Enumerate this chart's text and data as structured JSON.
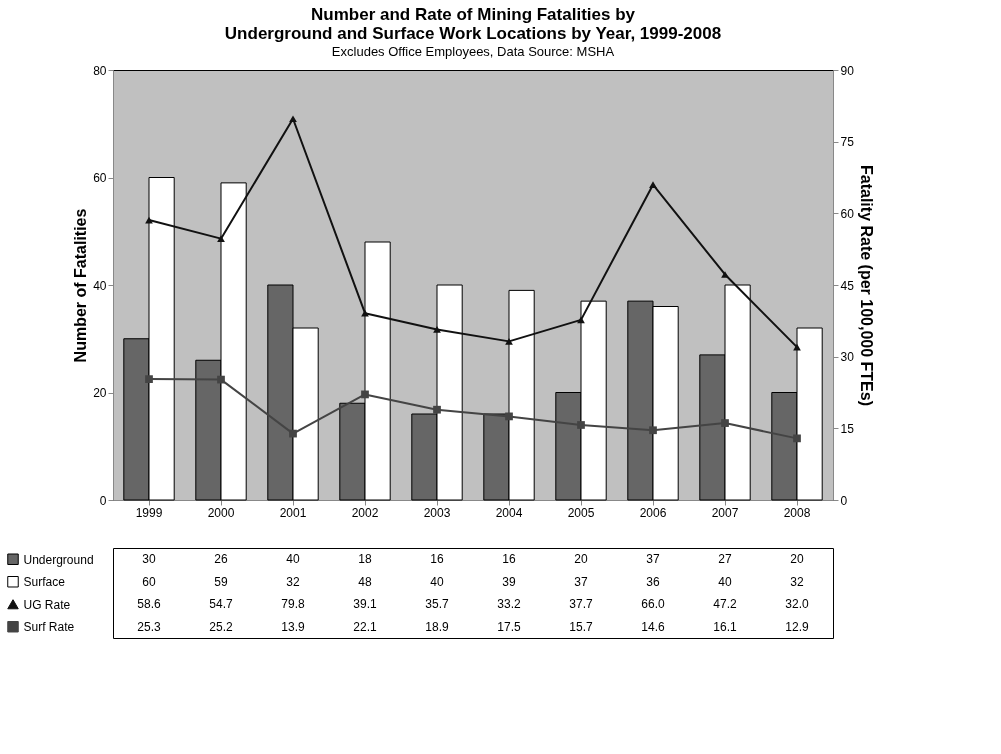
{
  "chart_data": {
    "type": "bar",
    "title": "Number and Rate of Mining Fatalities by\nUnderground and Surface Work Locations by Year, 1999-2008",
    "subtitle": "Excludes Office Employees, Data Source: MSHA",
    "ylabel": "Number of Fatalities",
    "y2label": "Fatality Rate (per 100,000 FTEs)",
    "categories": [
      "1999",
      "2000",
      "2001",
      "2002",
      "2003",
      "2004",
      "2005",
      "2006",
      "2007",
      "2008"
    ],
    "series": [
      {
        "name": "Underground",
        "color": "#666666",
        "values": [
          30,
          26,
          40,
          18,
          16,
          16,
          20,
          37,
          27,
          20
        ]
      },
      {
        "name": "Surface",
        "color": "#ffffff",
        "values": [
          60,
          59,
          32,
          48,
          40,
          39,
          37,
          36,
          40,
          32
        ]
      },
      {
        "name": "UG Rate",
        "type": "line",
        "axis": "y2",
        "marker": "triangle",
        "color": "#111111",
        "values": [
          58.6,
          54.7,
          79.8,
          39.1,
          35.7,
          33.2,
          37.7,
          66.0,
          47.2,
          32.0
        ],
        "value_labels": [
          "58.6",
          "54.7",
          "79.8",
          "39.1",
          "35.7",
          "33.2",
          "37.7",
          "66.0",
          "47.2",
          "32.0"
        ]
      },
      {
        "name": "Surf Rate",
        "type": "line",
        "axis": "y2",
        "marker": "square",
        "color": "#444444",
        "values": [
          25.3,
          25.2,
          13.9,
          22.1,
          18.9,
          17.5,
          15.7,
          14.6,
          16.1,
          12.9
        ]
      }
    ],
    "ylim": [
      0,
      80
    ],
    "yticks": [
      0,
      20,
      40,
      60,
      80
    ],
    "y2lim": [
      0,
      90
    ],
    "y2ticks": [
      0,
      15,
      30,
      45,
      60,
      75,
      90
    ],
    "grid": false,
    "legend": "bottom",
    "data_labels": true
  }
}
